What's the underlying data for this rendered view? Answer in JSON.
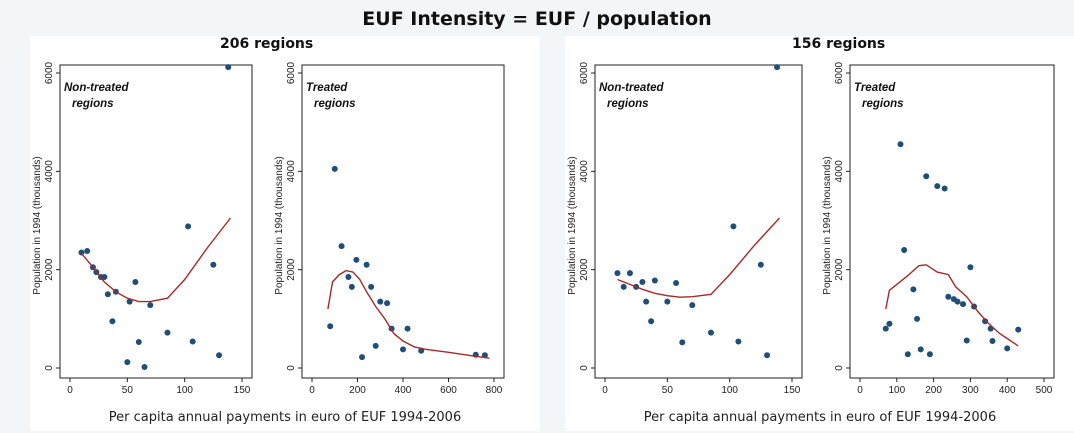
{
  "figure": {
    "title": "EUF Intensity = EUF / population",
    "groups": [
      {
        "title": "206 regions",
        "xlabel": "Per capita annual payments in euro of EUF 1994-2006"
      },
      {
        "title": "156 regions",
        "xlabel": "Per capita annual payments in euro of EUF 1994-2006"
      }
    ],
    "ylabel": "Population in 1994 (thousands)"
  },
  "colors": {
    "points": "#1f4e79",
    "curve": "#a52a2a",
    "axis": "#222222"
  },
  "chart_data": [
    {
      "type": "scatter",
      "annotation": [
        "Non-treated",
        "regions"
      ],
      "xlim": [
        0,
        150
      ],
      "ylim": [
        0,
        6000
      ],
      "xticks": [
        0,
        50,
        100,
        150
      ],
      "yticks": [
        0,
        2000,
        4000,
        6000
      ],
      "points": [
        [
          10,
          2350
        ],
        [
          15,
          2380
        ],
        [
          20,
          2050
        ],
        [
          23,
          1950
        ],
        [
          27,
          1850
        ],
        [
          30,
          1850
        ],
        [
          33,
          1500
        ],
        [
          37,
          950
        ],
        [
          40,
          1550
        ],
        [
          50,
          120
        ],
        [
          52,
          1350
        ],
        [
          57,
          1750
        ],
        [
          60,
          530
        ],
        [
          65,
          20
        ],
        [
          70,
          1280
        ],
        [
          85,
          720
        ],
        [
          103,
          2880
        ],
        [
          107,
          540
        ],
        [
          125,
          2100
        ],
        [
          130,
          260
        ],
        [
          138,
          6120
        ]
      ],
      "fit": [
        [
          10,
          2330
        ],
        [
          20,
          2050
        ],
        [
          30,
          1750
        ],
        [
          40,
          1550
        ],
        [
          50,
          1420
        ],
        [
          60,
          1350
        ],
        [
          70,
          1350
        ],
        [
          85,
          1420
        ],
        [
          100,
          1800
        ],
        [
          120,
          2450
        ],
        [
          140,
          3050
        ]
      ]
    },
    {
      "type": "scatter",
      "annotation": [
        "Treated",
        "regions"
      ],
      "xlim": [
        0,
        800
      ],
      "ylim": [
        0,
        6000
      ],
      "xticks": [
        0,
        200,
        400,
        600,
        800
      ],
      "yticks": [
        0,
        2000,
        4000,
        6000
      ],
      "points": [
        [
          80,
          850
        ],
        [
          100,
          4050
        ],
        [
          130,
          2480
        ],
        [
          160,
          1850
        ],
        [
          175,
          1650
        ],
        [
          195,
          2200
        ],
        [
          220,
          220
        ],
        [
          240,
          2100
        ],
        [
          260,
          1650
        ],
        [
          280,
          450
        ],
        [
          300,
          1350
        ],
        [
          330,
          1320
        ],
        [
          350,
          800
        ],
        [
          400,
          380
        ],
        [
          420,
          800
        ],
        [
          480,
          350
        ],
        [
          720,
          270
        ],
        [
          760,
          260
        ]
      ],
      "fit": [
        [
          70,
          1200
        ],
        [
          90,
          1750
        ],
        [
          120,
          1900
        ],
        [
          150,
          1980
        ],
        [
          180,
          1950
        ],
        [
          210,
          1800
        ],
        [
          240,
          1550
        ],
        [
          280,
          1250
        ],
        [
          320,
          1000
        ],
        [
          360,
          700
        ],
        [
          400,
          550
        ],
        [
          450,
          430
        ],
        [
          500,
          380
        ],
        [
          600,
          320
        ],
        [
          700,
          250
        ],
        [
          780,
          200
        ]
      ]
    },
    {
      "type": "scatter",
      "annotation": [
        "Non-treated",
        "regions"
      ],
      "xlim": [
        0,
        150
      ],
      "ylim": [
        0,
        6000
      ],
      "xticks": [
        0,
        50,
        100,
        150
      ],
      "yticks": [
        0,
        2000,
        4000,
        6000
      ],
      "points": [
        [
          10,
          1930
        ],
        [
          15,
          1650
        ],
        [
          20,
          1930
        ],
        [
          25,
          1650
        ],
        [
          30,
          1750
        ],
        [
          33,
          1350
        ],
        [
          37,
          950
        ],
        [
          40,
          1780
        ],
        [
          50,
          1350
        ],
        [
          57,
          1730
        ],
        [
          62,
          520
        ],
        [
          70,
          1280
        ],
        [
          85,
          720
        ],
        [
          103,
          2880
        ],
        [
          107,
          540
        ],
        [
          125,
          2100
        ],
        [
          130,
          260
        ],
        [
          138,
          6120
        ]
      ],
      "fit": [
        [
          10,
          1800
        ],
        [
          20,
          1700
        ],
        [
          30,
          1600
        ],
        [
          40,
          1520
        ],
        [
          50,
          1470
        ],
        [
          60,
          1440
        ],
        [
          70,
          1450
        ],
        [
          85,
          1500
        ],
        [
          100,
          1900
        ],
        [
          120,
          2500
        ],
        [
          140,
          3050
        ]
      ]
    },
    {
      "type": "scatter",
      "annotation": [
        "Treated",
        "regions"
      ],
      "xlim": [
        0,
        500
      ],
      "ylim": [
        0,
        6000
      ],
      "xticks": [
        0,
        100,
        200,
        300,
        400,
        500
      ],
      "yticks": [
        0,
        2000,
        4000,
        6000
      ],
      "points": [
        [
          70,
          800
        ],
        [
          80,
          900
        ],
        [
          110,
          4550
        ],
        [
          120,
          2400
        ],
        [
          130,
          280
        ],
        [
          145,
          1600
        ],
        [
          155,
          1000
        ],
        [
          165,
          380
        ],
        [
          180,
          3900
        ],
        [
          190,
          280
        ],
        [
          210,
          3700
        ],
        [
          230,
          3650
        ],
        [
          240,
          1450
        ],
        [
          255,
          1400
        ],
        [
          265,
          1350
        ],
        [
          280,
          1300
        ],
        [
          290,
          560
        ],
        [
          300,
          2050
        ],
        [
          310,
          1250
        ],
        [
          340,
          950
        ],
        [
          355,
          800
        ],
        [
          360,
          550
        ],
        [
          400,
          400
        ],
        [
          430,
          780
        ]
      ],
      "fit": [
        [
          70,
          1200
        ],
        [
          80,
          1580
        ],
        [
          100,
          1700
        ],
        [
          130,
          1880
        ],
        [
          160,
          2080
        ],
        [
          180,
          2100
        ],
        [
          210,
          1950
        ],
        [
          240,
          1900
        ],
        [
          260,
          1650
        ],
        [
          290,
          1450
        ],
        [
          320,
          1150
        ],
        [
          350,
          900
        ],
        [
          380,
          700
        ],
        [
          400,
          600
        ],
        [
          430,
          450
        ]
      ]
    }
  ]
}
